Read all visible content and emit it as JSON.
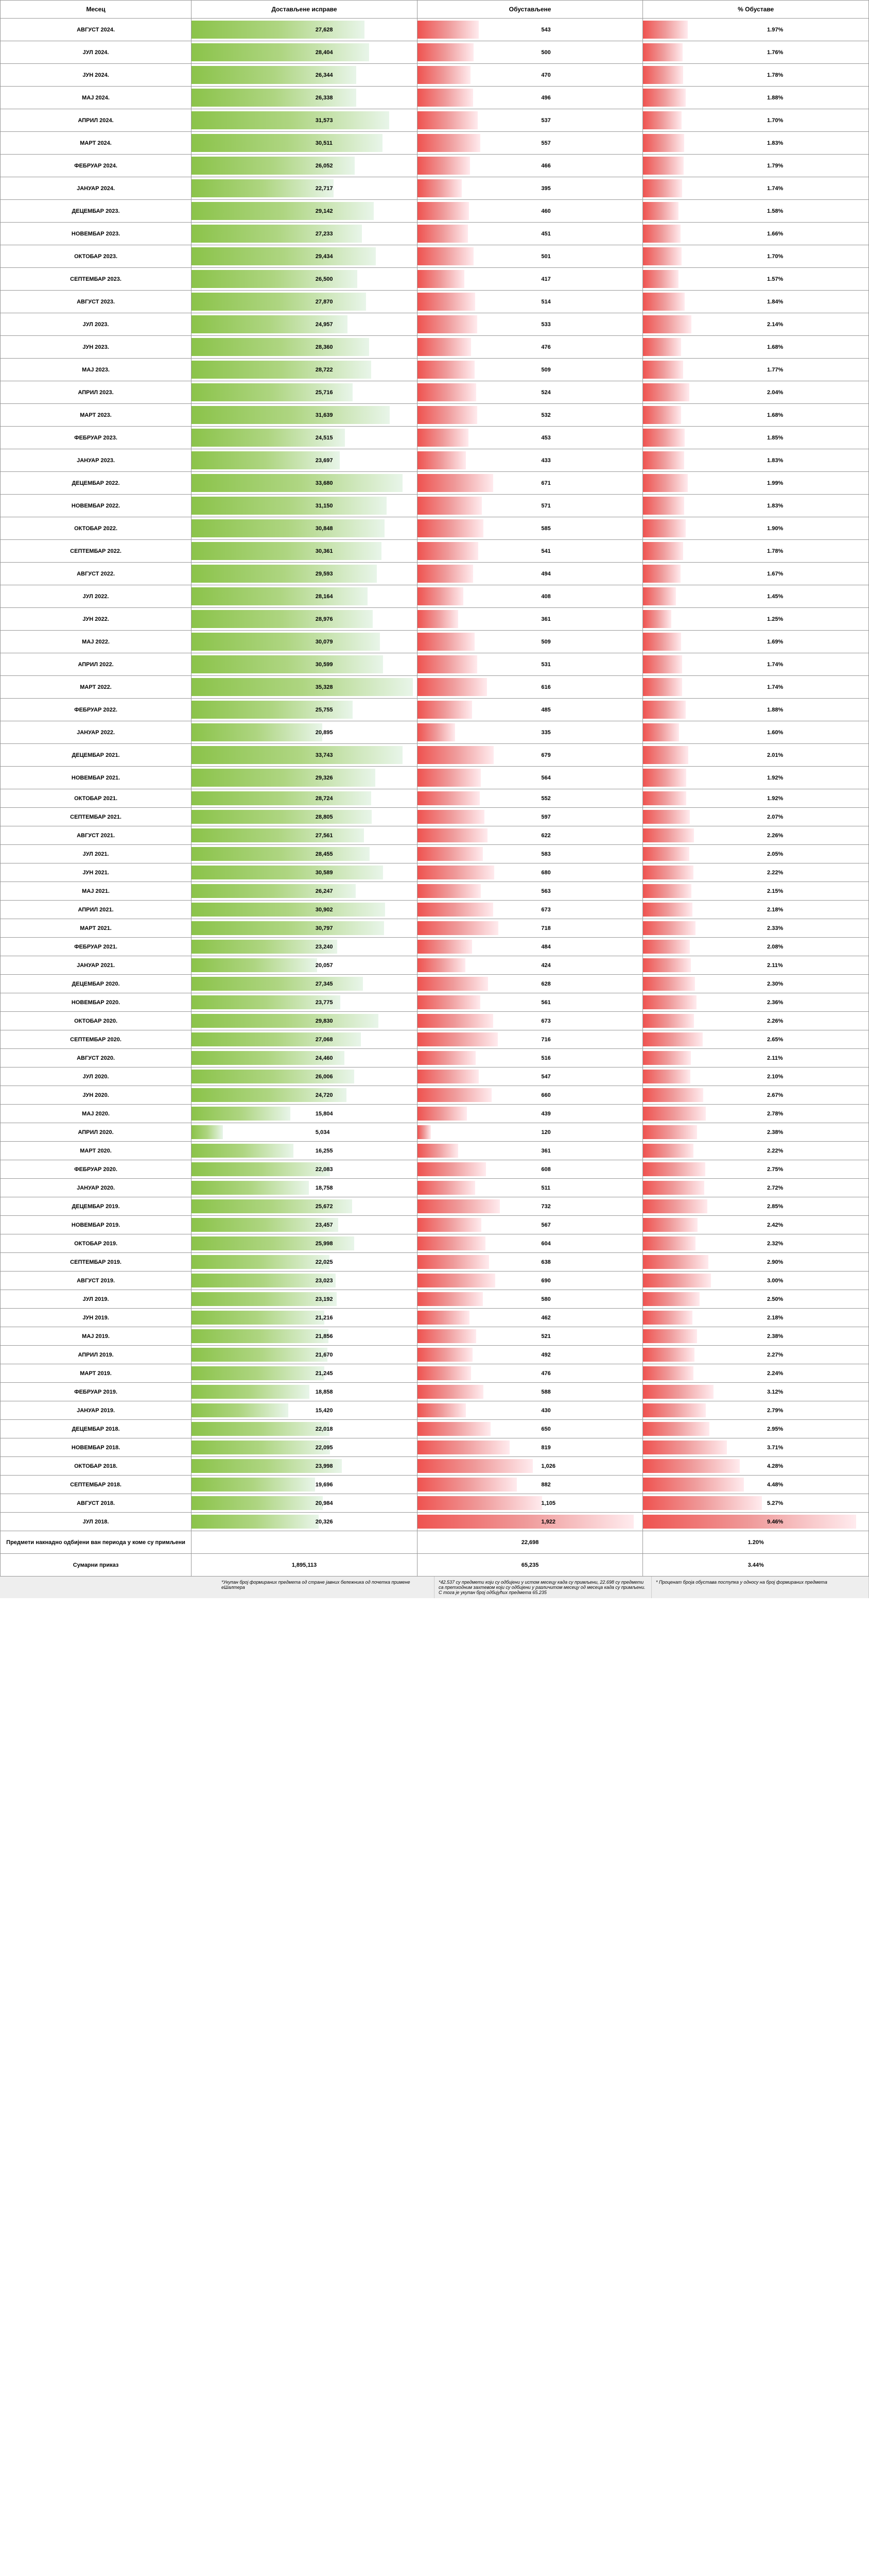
{
  "headers": {
    "month": "Месец",
    "delivered": "Достављене исправе",
    "suspended": "Обустављене",
    "pct": "% Обуставе"
  },
  "max": {
    "delivered": 36000,
    "suspended": 2000,
    "pct": 10.0
  },
  "rows": [
    {
      "m": "АВГУСТ 2024.",
      "d": 27628,
      "s": 543,
      "p": 1.97,
      "tall": true
    },
    {
      "m": "ЈУЛ 2024.",
      "d": 28404,
      "s": 500,
      "p": 1.76,
      "tall": true
    },
    {
      "m": "ЈУН 2024.",
      "d": 26344,
      "s": 470,
      "p": 1.78,
      "tall": true
    },
    {
      "m": "МАЈ 2024.",
      "d": 26338,
      "s": 496,
      "p": 1.88,
      "tall": true
    },
    {
      "m": "АПРИЛ 2024.",
      "d": 31573,
      "s": 537,
      "p": 1.7,
      "tall": true
    },
    {
      "m": "МАРТ 2024.",
      "d": 30511,
      "s": 557,
      "p": 1.83,
      "tall": true
    },
    {
      "m": "ФЕБРУАР 2024.",
      "d": 26052,
      "s": 466,
      "p": 1.79,
      "tall": true
    },
    {
      "m": "ЈАНУАР 2024.",
      "d": 22717,
      "s": 395,
      "p": 1.74,
      "tall": true
    },
    {
      "m": "ДЕЦЕМБАР 2023.",
      "d": 29142,
      "s": 460,
      "p": 1.58,
      "tall": true
    },
    {
      "m": "НОВЕМБАР 2023.",
      "d": 27233,
      "s": 451,
      "p": 1.66,
      "tall": true
    },
    {
      "m": "ОКТОБАР 2023.",
      "d": 29434,
      "s": 501,
      "p": 1.7,
      "tall": true
    },
    {
      "m": "СЕПТЕМБАР 2023.",
      "d": 26500,
      "s": 417,
      "p": 1.57,
      "tall": true
    },
    {
      "m": "АВГУСТ 2023.",
      "d": 27870,
      "s": 514,
      "p": 1.84,
      "tall": true
    },
    {
      "m": "ЈУЛ 2023.",
      "d": 24957,
      "s": 533,
      "p": 2.14,
      "tall": true
    },
    {
      "m": "ЈУН 2023.",
      "d": 28360,
      "s": 476,
      "p": 1.68,
      "tall": true
    },
    {
      "m": "МАЈ 2023.",
      "d": 28722,
      "s": 509,
      "p": 1.77,
      "tall": true
    },
    {
      "m": "АПРИЛ 2023.",
      "d": 25716,
      "s": 524,
      "p": 2.04,
      "tall": true
    },
    {
      "m": "МАРТ 2023.",
      "d": 31639,
      "s": 532,
      "p": 1.68,
      "tall": true
    },
    {
      "m": "ФЕБРУАР 2023.",
      "d": 24515,
      "s": 453,
      "p": 1.85,
      "tall": true
    },
    {
      "m": "ЈАНУАР 2023.",
      "d": 23697,
      "s": 433,
      "p": 1.83,
      "tall": true
    },
    {
      "m": "ДЕЦЕМБАР 2022.",
      "d": 33680,
      "s": 671,
      "p": 1.99,
      "tall": true
    },
    {
      "m": "НОВЕМБАР 2022.",
      "d": 31150,
      "s": 571,
      "p": 1.83,
      "tall": true
    },
    {
      "m": "ОКТОБАР 2022.",
      "d": 30848,
      "s": 585,
      "p": 1.9,
      "tall": true
    },
    {
      "m": "СЕПТЕМБАР 2022.",
      "d": 30361,
      "s": 541,
      "p": 1.78,
      "tall": true
    },
    {
      "m": "АВГУСТ 2022.",
      "d": 29593,
      "s": 494,
      "p": 1.67,
      "tall": true
    },
    {
      "m": "ЈУЛ 2022.",
      "d": 28164,
      "s": 408,
      "p": 1.45,
      "tall": true
    },
    {
      "m": "ЈУН 2022.",
      "d": 28976,
      "s": 361,
      "p": 1.25,
      "tall": true
    },
    {
      "m": "МАЈ 2022.",
      "d": 30079,
      "s": 509,
      "p": 1.69,
      "tall": true
    },
    {
      "m": "АПРИЛ 2022.",
      "d": 30599,
      "s": 531,
      "p": 1.74,
      "tall": true
    },
    {
      "m": "МАРТ 2022.",
      "d": 35328,
      "s": 616,
      "p": 1.74,
      "tall": true
    },
    {
      "m": "ФЕБРУАР 2022.",
      "d": 25755,
      "s": 485,
      "p": 1.88,
      "tall": true
    },
    {
      "m": "ЈАНУАР 2022.",
      "d": 20895,
      "s": 335,
      "p": 1.6,
      "tall": true
    },
    {
      "m": "ДЕЦЕМБАР 2021.",
      "d": 33743,
      "s": 679,
      "p": 2.01,
      "tall": true
    },
    {
      "m": "НОВЕМБАР 2021.",
      "d": 29326,
      "s": 564,
      "p": 1.92,
      "tall": true
    },
    {
      "m": "ОКТОБАР 2021.",
      "d": 28724,
      "s": 552,
      "p": 1.92
    },
    {
      "m": "СЕПТЕМБАР 2021.",
      "d": 28805,
      "s": 597,
      "p": 2.07
    },
    {
      "m": "АВГУСТ 2021.",
      "d": 27561,
      "s": 622,
      "p": 2.26
    },
    {
      "m": "ЈУЛ 2021.",
      "d": 28455,
      "s": 583,
      "p": 2.05
    },
    {
      "m": "ЈУН 2021.",
      "d": 30589,
      "s": 680,
      "p": 2.22
    },
    {
      "m": "МАЈ 2021.",
      "d": 26247,
      "s": 563,
      "p": 2.15
    },
    {
      "m": "АПРИЛ 2021.",
      "d": 30902,
      "s": 673,
      "p": 2.18
    },
    {
      "m": "МАРТ 2021.",
      "d": 30797,
      "s": 718,
      "p": 2.33
    },
    {
      "m": "ФЕБРУАР 2021.",
      "d": 23240,
      "s": 484,
      "p": 2.08
    },
    {
      "m": "ЈАНУАР 2021.",
      "d": 20057,
      "s": 424,
      "p": 2.11
    },
    {
      "m": "ДЕЦЕМБАР 2020.",
      "d": 27345,
      "s": 628,
      "p": 2.3
    },
    {
      "m": "НОВЕМБАР 2020.",
      "d": 23775,
      "s": 561,
      "p": 2.36
    },
    {
      "m": "ОКТОБАР 2020.",
      "d": 29830,
      "s": 673,
      "p": 2.26
    },
    {
      "m": "СЕПТЕМБАР 2020.",
      "d": 27068,
      "s": 716,
      "p": 2.65
    },
    {
      "m": "АВГУСТ 2020.",
      "d": 24460,
      "s": 516,
      "p": 2.11
    },
    {
      "m": "ЈУЛ 2020.",
      "d": 26006,
      "s": 547,
      "p": 2.1
    },
    {
      "m": "ЈУН 2020.",
      "d": 24720,
      "s": 660,
      "p": 2.67
    },
    {
      "m": "МАЈ 2020.",
      "d": 15804,
      "s": 439,
      "p": 2.78
    },
    {
      "m": "АПРИЛ 2020.",
      "d": 5034,
      "s": 120,
      "p": 2.38
    },
    {
      "m": "МАРТ 2020.",
      "d": 16255,
      "s": 361,
      "p": 2.22
    },
    {
      "m": "ФЕБРУАР 2020.",
      "d": 22083,
      "s": 608,
      "p": 2.75
    },
    {
      "m": "ЈАНУАР 2020.",
      "d": 18758,
      "s": 511,
      "p": 2.72
    },
    {
      "m": "ДЕЦЕМБАР 2019.",
      "d": 25672,
      "s": 732,
      "p": 2.85
    },
    {
      "m": "НОВЕМБАР 2019.",
      "d": 23457,
      "s": 567,
      "p": 2.42
    },
    {
      "m": "ОКТОБАР 2019.",
      "d": 25998,
      "s": 604,
      "p": 2.32
    },
    {
      "m": "СЕПТЕМБАР 2019.",
      "d": 22025,
      "s": 638,
      "p": 2.9
    },
    {
      "m": "АВГУСТ 2019.",
      "d": 23023,
      "s": 690,
      "p": 3.0
    },
    {
      "m": "ЈУЛ 2019.",
      "d": 23192,
      "s": 580,
      "p": 2.5
    },
    {
      "m": "ЈУН 2019.",
      "d": 21216,
      "s": 462,
      "p": 2.18
    },
    {
      "m": "МАЈ 2019.",
      "d": 21856,
      "s": 521,
      "p": 2.38
    },
    {
      "m": "АПРИЛ 2019.",
      "d": 21670,
      "s": 492,
      "p": 2.27
    },
    {
      "m": "МАРТ 2019.",
      "d": 21245,
      "s": 476,
      "p": 2.24
    },
    {
      "m": "ФЕБРУАР 2019.",
      "d": 18858,
      "s": 588,
      "p": 3.12
    },
    {
      "m": "ЈАНУАР 2019.",
      "d": 15420,
      "s": 430,
      "p": 2.79
    },
    {
      "m": "ДЕЦЕМБАР 2018.",
      "d": 22018,
      "s": 650,
      "p": 2.95
    },
    {
      "m": "НОВЕМБАР 2018.",
      "d": 22095,
      "s": 819,
      "p": 3.71
    },
    {
      "m": "ОКТОБАР 2018.",
      "d": 23998,
      "s": 1026,
      "p": 4.28
    },
    {
      "m": "СЕПТЕМБАР 2018.",
      "d": 19696,
      "s": 882,
      "p": 4.48
    },
    {
      "m": "АВГУСТ 2018.",
      "d": 20984,
      "s": 1105,
      "p": 5.27
    },
    {
      "m": "ЈУЛ 2018.",
      "d": 20326,
      "s": 1922,
      "p": 9.46
    }
  ],
  "summary": [
    {
      "label": "Предмети накнадно одбијени ван периода у коме су примљени",
      "d": "",
      "s": "22,698",
      "p": "1.20%"
    },
    {
      "label": "Сумарни приказ",
      "d": "1,895,113",
      "s": "65,235",
      "p": "3.44%"
    }
  ],
  "footnotes": [
    "*Укупан број формираних предмета од стране јавних бележника од почетка примене еШалтера",
    "*42.537 су предмети који су одбијени у истом месецу када су примљени, 22.698 су предмети са претходним захтевом који су одбијени у различитом месецу од месеца када су примљени.\nС тога је укупан број одбијућих предмета 65.235",
    "* Проценат броја обустава поступка у односу на број формираних предмета"
  ]
}
